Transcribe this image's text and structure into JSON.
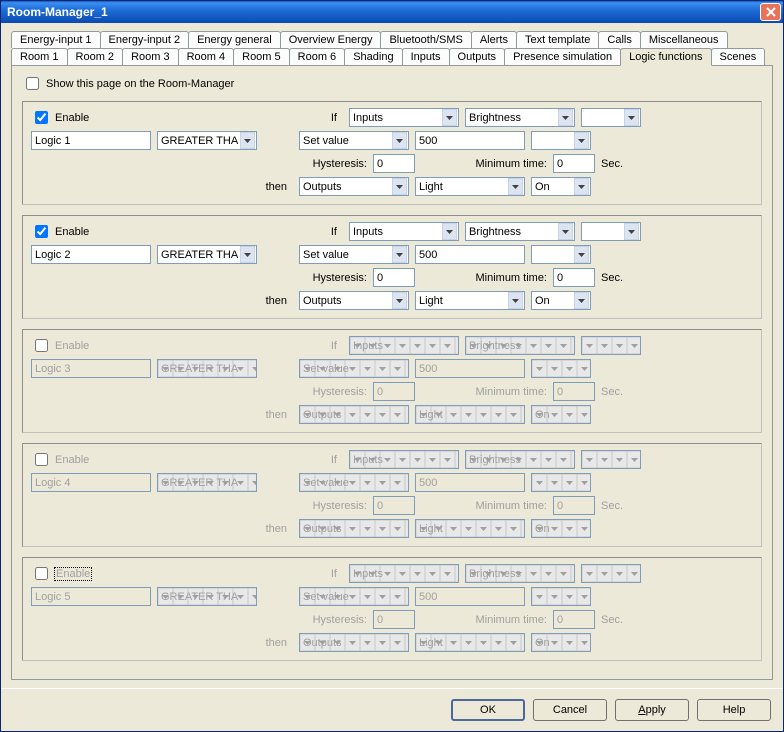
{
  "window": {
    "title": "Room-Manager_1"
  },
  "tabs_row1": [
    "Energy-input 1",
    "Energy-input 2",
    "Energy general",
    "Overview Energy",
    "Bluetooth/SMS",
    "Alerts",
    "Text template",
    "Calls",
    "Miscellaneous"
  ],
  "tabs_row2": [
    "Room 1",
    "Room 2",
    "Room 3",
    "Room 4",
    "Room 5",
    "Room 6",
    "Shading",
    "Inputs",
    "Outputs",
    "Presence simulation",
    "Logic functions",
    "Scenes"
  ],
  "active_tab": "Logic functions",
  "show_page_label": "Show this page on the Room-Manager",
  "labels": {
    "enable": "Enable",
    "if": "If",
    "then": "then",
    "hysteresis": "Hysteresis:",
    "min_time": "Minimum time:",
    "sec": "Sec."
  },
  "logics": [
    {
      "enabled": true,
      "name": "Logic 1",
      "op": "GREATER THAN",
      "if1": "Inputs",
      "if2": "Set value",
      "param": "Brightness",
      "val": "500",
      "hyst": "0",
      "mt": "0",
      "then1": "Outputs",
      "then2": "Light",
      "then3": "On"
    },
    {
      "enabled": true,
      "name": "Logic 2",
      "op": "GREATER THAN",
      "if1": "Inputs",
      "if2": "Set value",
      "param": "Brightness",
      "val": "500",
      "hyst": "0",
      "mt": "0",
      "then1": "Outputs",
      "then2": "Light",
      "then3": "On"
    },
    {
      "enabled": false,
      "name": "Logic 3",
      "op": "GREATER THAN",
      "if1": "Inputs",
      "if2": "Set value",
      "param": "Brightness",
      "val": "500",
      "hyst": "0",
      "mt": "0",
      "then1": "Outputs",
      "then2": "Light",
      "then3": "On"
    },
    {
      "enabled": false,
      "name": "Logic 4",
      "op": "GREATER THAN",
      "if1": "Inputs",
      "if2": "Set value",
      "param": "Brightness",
      "val": "500",
      "hyst": "0",
      "mt": "0",
      "then1": "Outputs",
      "then2": "Light",
      "then3": "On"
    },
    {
      "enabled": false,
      "name": "Logic 5",
      "op": "GREATER THAN",
      "if1": "Inputs",
      "if2": "Set value",
      "param": "Brightness",
      "val": "500",
      "hyst": "0",
      "mt": "0",
      "then1": "Outputs",
      "then2": "Light",
      "then3": "On",
      "focus": true
    }
  ],
  "buttons": {
    "ok": "OK",
    "cancel": "Cancel",
    "apply": "Apply",
    "help": "Help"
  }
}
